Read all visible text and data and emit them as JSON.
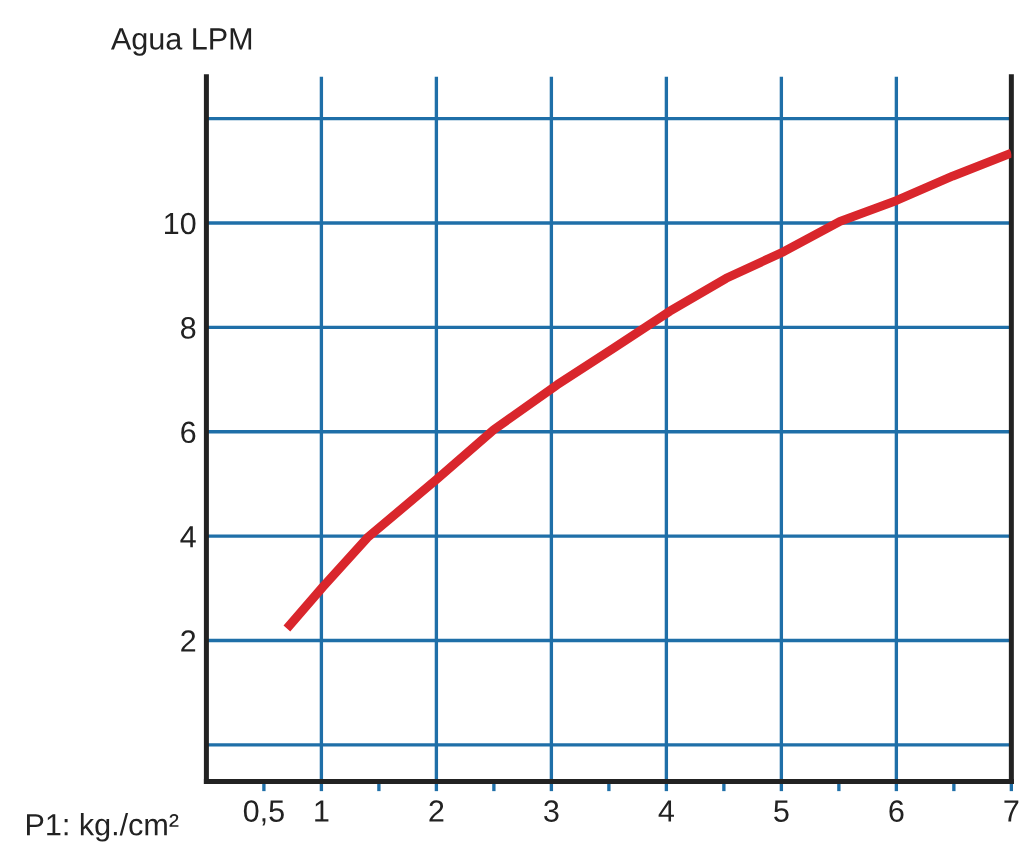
{
  "chart_data": {
    "type": "line",
    "ylabel": "Agua LPM",
    "xlabel": "P1: kg./cm²",
    "x": [
      0.7,
      1.01,
      1.4,
      2.02,
      2.5,
      3.05,
      3.54,
      4.03,
      4.52,
      5.02,
      5.51,
      6.0,
      6.49,
      7.0
    ],
    "series": [
      {
        "color": "#d9262c",
        "values": [
          2.23,
          3.02,
          3.97,
          5.12,
          6.04,
          6.9,
          7.6,
          8.31,
          8.94,
          9.45,
          10.03,
          10.43,
          10.9,
          11.34
        ]
      }
    ],
    "xlim": [
      0,
      7
    ],
    "ylim": [
      -0.7,
      12.8
    ],
    "xticks": [
      {
        "value": 0.5,
        "label": "0,5"
      },
      1,
      {
        "value": 1.5,
        "label": null
      },
      2,
      {
        "value": 2.5,
        "label": null
      },
      3,
      {
        "value": 3.5,
        "label": null
      },
      4,
      {
        "value": 4.5,
        "label": null
      },
      5,
      {
        "value": 5.5,
        "label": null
      },
      6,
      {
        "value": 6.5,
        "label": null
      },
      7
    ],
    "yticks": [
      {
        "value": 0,
        "label": null
      },
      2,
      4,
      6,
      8,
      10,
      {
        "value": 12,
        "label": null
      }
    ],
    "grid": true,
    "line_style": "solid",
    "marker": "none"
  }
}
